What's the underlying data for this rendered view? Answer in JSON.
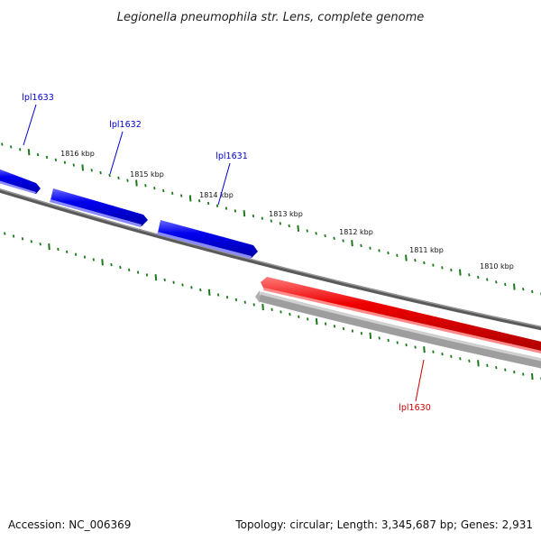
{
  "title": "Legionella pneumophila str. Lens, complete genome",
  "footer": {
    "accession": "Accession: NC_006369",
    "summary": "Topology: circular; Length: 3,345,687 bp; Genes: 2,931"
  },
  "scale_labels": [
    "1816 kbp",
    "1815 kbp",
    "1814 kbp",
    "1813 kbp",
    "1812 kbp",
    "1811 kbp",
    "1810 kbp"
  ],
  "genes": [
    {
      "name": "lpl1633",
      "strand": "forward",
      "color": "#0000ff"
    },
    {
      "name": "lpl1632",
      "strand": "forward",
      "color": "#0000ff"
    },
    {
      "name": "lpl1631",
      "strand": "forward",
      "color": "#0000ff"
    },
    {
      "name": "lpl1630",
      "strand": "reverse",
      "color": "#ff0000"
    }
  ],
  "colors": {
    "forward_gene": "#0000ff",
    "reverse_gene": "#ff0000",
    "backbone": "#808080",
    "reverse_track": "#b0b0b0",
    "ticks": "#1a7a1a"
  }
}
